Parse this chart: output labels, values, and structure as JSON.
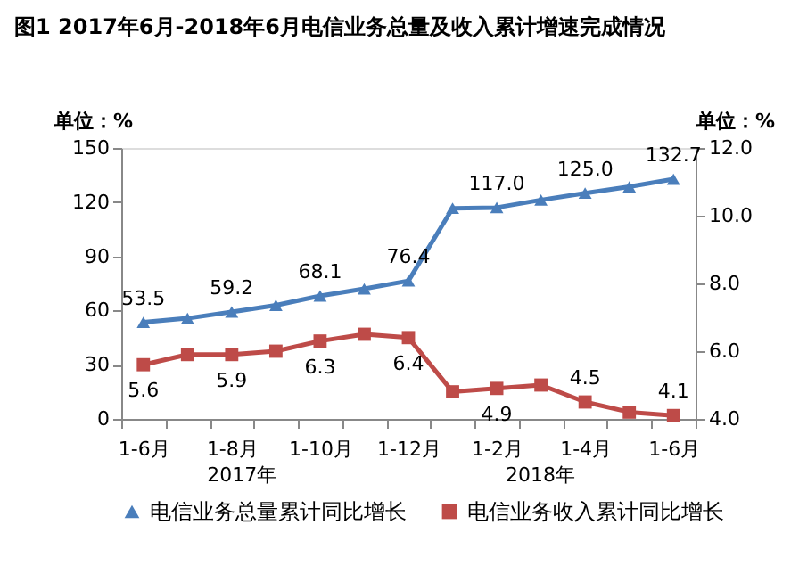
{
  "chart_data": {
    "type": "line",
    "title": "图1    2017年6月-2018年6月电信业务总量及收入累计增速完成情况",
    "categories": [
      "1-6月",
      null,
      "1-8月",
      null,
      "1-10月",
      null,
      "1-12月",
      null,
      "1-2月",
      null,
      "1-4月",
      null,
      "1-6月"
    ],
    "series": [
      {
        "name": "电信业务总量累计同比增长",
        "color": "#4a7ebb",
        "marker": "triangle",
        "values": [
          53.5,
          55.7,
          59.2,
          62.9,
          68.1,
          72.0,
          76.4,
          116.6,
          117.0,
          121.2,
          125.0,
          128.5,
          132.7
        ],
        "value_labels": [
          "53.5",
          null,
          "59.2",
          null,
          "68.1",
          null,
          "76.4",
          null,
          "117.0",
          null,
          "125.0",
          null,
          "132.7"
        ]
      },
      {
        "name": "电信业务收入累计同比增长",
        "color": "#be4b48",
        "marker": "square",
        "axis": "y2",
        "values": [
          5.6,
          5.9,
          5.9,
          6.0,
          6.3,
          6.5,
          6.4,
          4.8,
          4.9,
          5.0,
          4.5,
          4.2,
          4.1
        ],
        "value_labels": [
          "5.6",
          null,
          "5.9",
          null,
          "6.3",
          null,
          "6.4",
          null,
          "4.9",
          null,
          "4.5",
          null,
          "4.1"
        ]
      }
    ],
    "ylabel": "单位：%",
    "y2label": "单位：%",
    "ylim": [
      0,
      150
    ],
    "yticks": [
      0,
      30,
      60,
      90,
      120,
      150
    ],
    "y2lim": [
      4.0,
      12.0
    ],
    "y2ticks": [
      {
        "value": 4,
        "label": "4.0"
      },
      {
        "value": 6,
        "label": "6.0"
      },
      {
        "value": 8,
        "label": "8.0"
      },
      {
        "value": 10,
        "label": "10.0"
      },
      {
        "value": 12,
        "label": "12.0"
      }
    ],
    "annotations": [
      "2017年",
      "2018年"
    ],
    "legend": "bottom",
    "grid": false
  }
}
